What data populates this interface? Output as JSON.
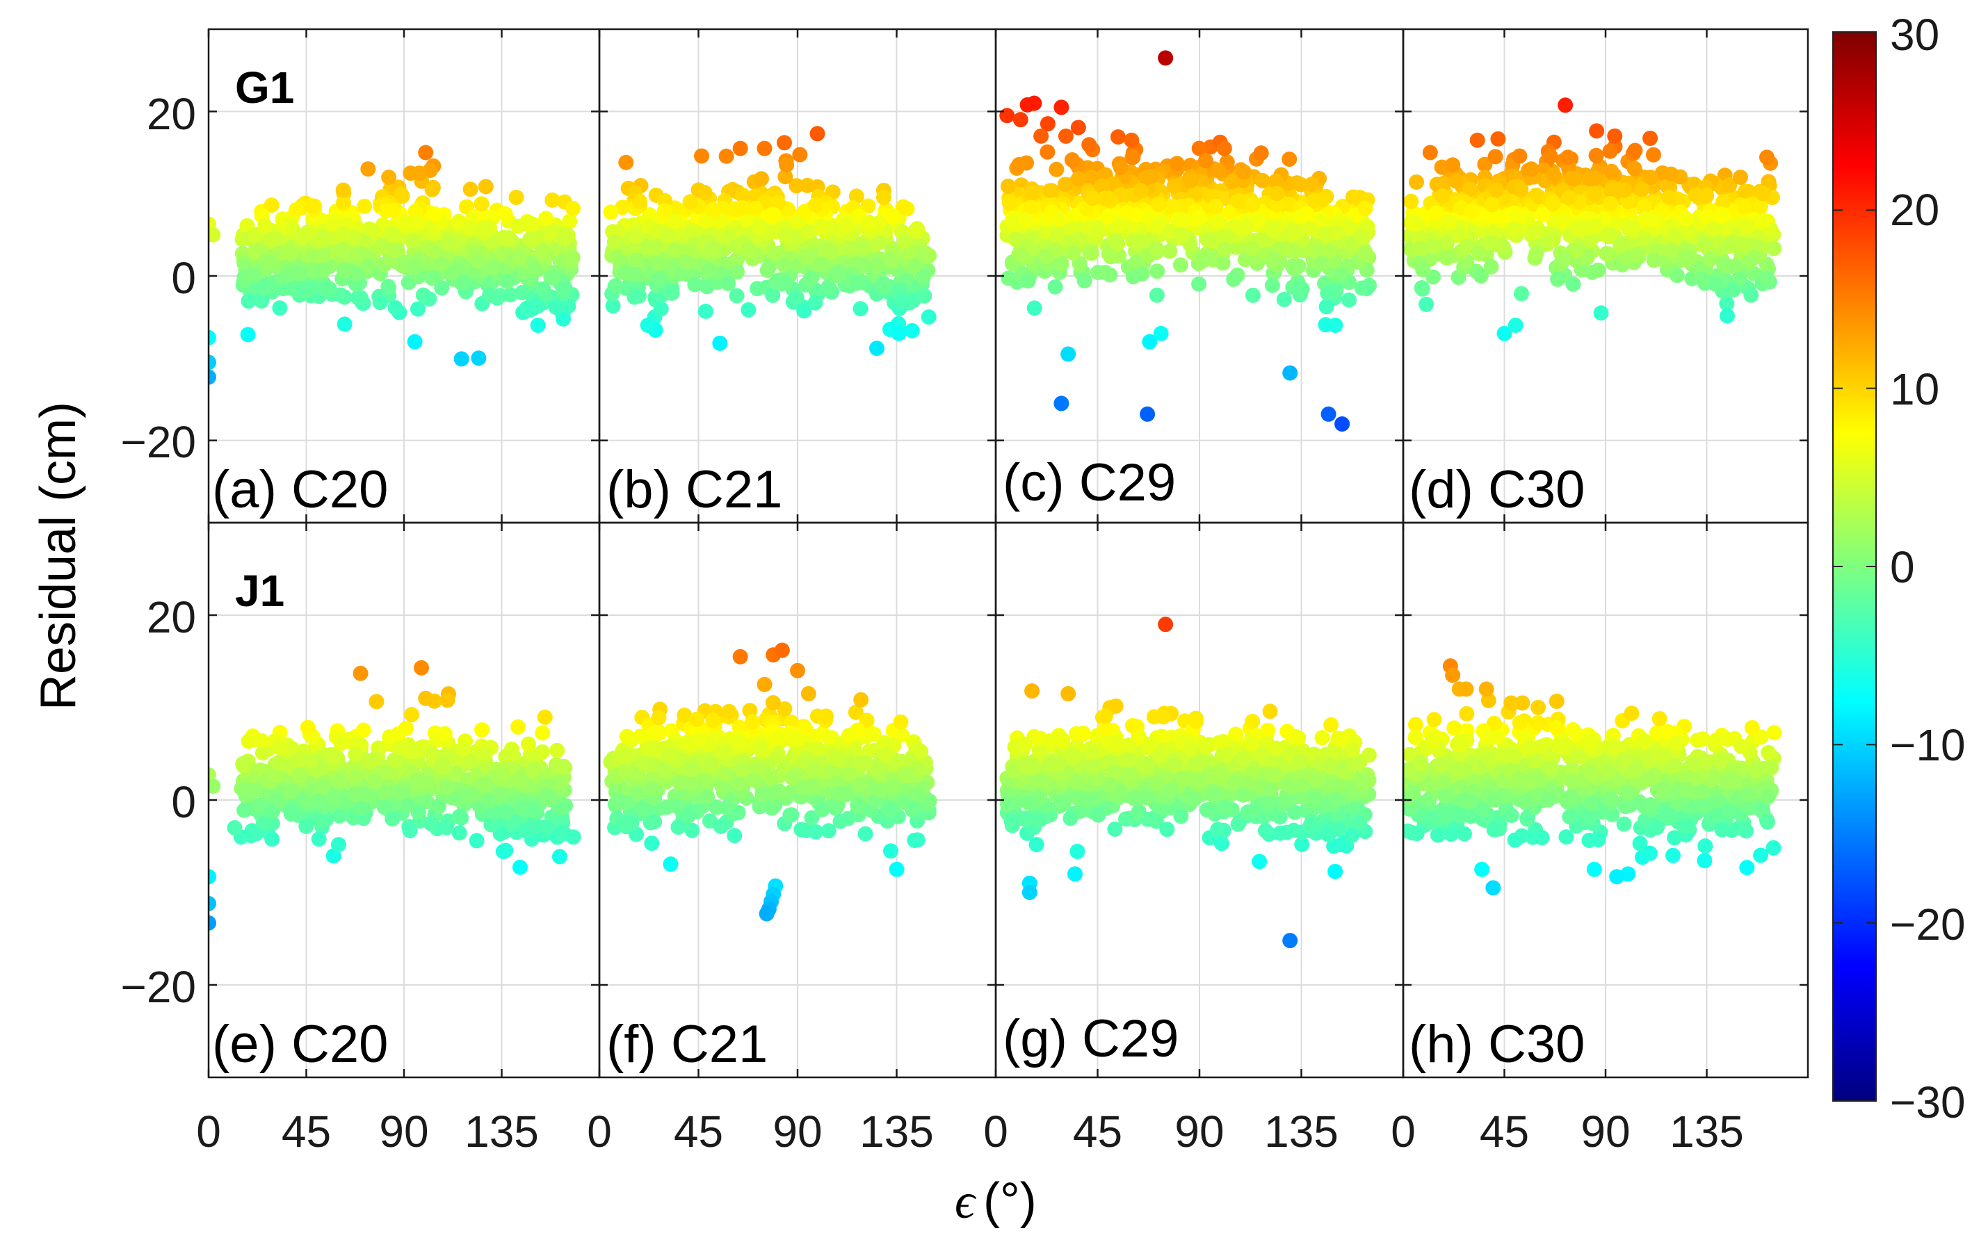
{
  "chart_data": {
    "type": "scatter",
    "colormap": "jet",
    "ylabel": "Residual (cm)",
    "xlabel_symbol": "ϵ",
    "xlabel_unit": "(°)",
    "xlim": [
      0,
      180
    ],
    "ylim": [
      -30,
      30
    ],
    "xticks": [
      0,
      45,
      90,
      135
    ],
    "xtick_labels": [
      "0",
      "45",
      "90",
      "135"
    ],
    "yticks": [
      20,
      0,
      -20
    ],
    "ytick_labels": [
      "20",
      "0",
      "−20"
    ],
    "colorbar": {
      "range": [
        -30,
        30
      ],
      "ticks": [
        30,
        20,
        10,
        0,
        -10,
        -20,
        -30
      ],
      "tick_labels": [
        "30",
        "20",
        "10",
        "0",
        "−10",
        "−20",
        "−30"
      ],
      "stops": [
        "#00007f",
        "#0000ff",
        "#007fff",
        "#00ffff",
        "#7fff7f",
        "#ffff00",
        "#ff7f00",
        "#ff0000",
        "#7f0000"
      ]
    },
    "rows": [
      {
        "label": "G1",
        "panels": [
          "(a) C20",
          "(b) C21",
          "(c) C29",
          "(d) C30"
        ]
      },
      {
        "label": "J1",
        "panels": [
          "(e) C20",
          "(f) C21",
          "(g) C29",
          "(h) C30"
        ]
      }
    ],
    "panels": [
      {
        "id": "a",
        "label": "(a) C20",
        "cloud": {
          "x": [
            15,
            168
          ],
          "center": 1.5,
          "amp": 4.5,
          "spread": 3.2,
          "n": 650
        },
        "points": [
          [
            0,
            -7.5
          ],
          [
            0,
            -10.5
          ],
          [
            0,
            -12.3
          ],
          [
            0,
            6.3
          ],
          [
            2,
            5
          ],
          [
            100,
            15
          ],
          [
            97,
            12.5
          ],
          [
            83,
            12
          ],
          [
            93,
            12.5
          ],
          [
            103,
            10.5
          ],
          [
            95,
            -8
          ]
        ]
      },
      {
        "id": "b",
        "label": "(b) C21",
        "cloud": {
          "x": [
            5,
            150
          ],
          "center": 2,
          "amp": 4.5,
          "spread": 3.3,
          "n": 650
        },
        "points": [
          [
            64,
            15.5
          ],
          [
            84,
            16.2
          ],
          [
            75,
            15.5
          ],
          [
            99,
            17.3
          ],
          [
            85,
            13.5
          ],
          [
            126,
            -8.8
          ],
          [
            132,
            -6.5
          ],
          [
            136,
            -7
          ],
          [
            22,
            -6
          ],
          [
            28,
            -4
          ]
        ]
      },
      {
        "id": "c",
        "label": "(c) C29",
        "cloud": {
          "x": [
            5,
            165
          ],
          "center": 5,
          "amp": 5.5,
          "spread": 3.4,
          "n": 800
        },
        "points": [
          [
            75,
            26.5
          ],
          [
            5,
            19.5
          ],
          [
            14,
            20.8
          ],
          [
            17,
            21
          ],
          [
            11,
            19
          ],
          [
            29,
            20.5
          ],
          [
            23,
            18.5
          ],
          [
            31,
            17
          ],
          [
            20,
            17
          ],
          [
            60,
            16.5
          ],
          [
            101,
            15.5
          ],
          [
            32,
            -9.5
          ],
          [
            29,
            -15.5
          ],
          [
            67,
            -16.8
          ],
          [
            130,
            -11.8
          ],
          [
            147,
            -16.8
          ],
          [
            153,
            -18
          ],
          [
            68,
            -8
          ],
          [
            73,
            -7
          ],
          [
            150,
            -6
          ]
        ]
      },
      {
        "id": "d",
        "label": "(d) C30",
        "cloud": {
          "x": [
            2,
            165
          ],
          "center": 5,
          "amp": 5,
          "spread": 3.4,
          "n": 800
        },
        "points": [
          [
            33,
            16.5
          ],
          [
            12,
            15
          ],
          [
            41,
            14.5
          ],
          [
            22,
            13.5
          ],
          [
            57,
            13
          ],
          [
            110,
            12
          ],
          [
            150,
            12
          ],
          [
            160,
            10
          ],
          [
            45,
            -7
          ],
          [
            50,
            -6
          ],
          [
            88,
            -4.5
          ]
        ]
      },
      {
        "id": "e",
        "label": "(e) C20",
        "cloud": {
          "x": [
            15,
            165
          ],
          "center": 0.5,
          "amp": 3.5,
          "spread": 2.6,
          "n": 650
        },
        "points": [
          [
            0,
            -8.3
          ],
          [
            0,
            -11.2
          ],
          [
            0,
            -13.3
          ],
          [
            0,
            2.7
          ],
          [
            2,
            1.5
          ],
          [
            70,
            13.7
          ],
          [
            98,
            14.3
          ],
          [
            104,
            10.7
          ],
          [
            110,
            10.8
          ],
          [
            100,
            11
          ],
          [
            163,
            -3.5
          ],
          [
            168,
            -4
          ],
          [
            15,
            -4
          ],
          [
            12,
            -3
          ]
        ]
      },
      {
        "id": "f",
        "label": "(f) C21",
        "cloud": {
          "x": [
            5,
            150
          ],
          "center": 1.5,
          "amp": 4,
          "spread": 2.9,
          "n": 650
        },
        "points": [
          [
            64,
            15.5
          ],
          [
            79,
            15.7
          ],
          [
            83,
            16.2
          ],
          [
            90,
            14
          ],
          [
            75,
            12.5
          ],
          [
            95,
            11.5
          ],
          [
            80,
            -9.3
          ],
          [
            79,
            -10.2
          ],
          [
            78,
            -11
          ],
          [
            77,
            -11.8
          ],
          [
            76,
            -12.3
          ],
          [
            8,
            -2
          ],
          [
            12,
            -2.5
          ]
        ]
      },
      {
        "id": "g",
        "label": "(g) C29",
        "cloud": {
          "x": [
            5,
            165
          ],
          "center": 1,
          "amp": 3.5,
          "spread": 2.7,
          "n": 800
        },
        "points": [
          [
            75,
            19
          ],
          [
            16,
            11.8
          ],
          [
            32,
            11.5
          ],
          [
            70,
            9
          ],
          [
            74,
            9
          ],
          [
            15,
            -9
          ],
          [
            15,
            -10
          ],
          [
            35,
            -8
          ],
          [
            130,
            -15.2
          ]
        ]
      },
      {
        "id": "h",
        "label": "(h) C30",
        "cloud": {
          "x": [
            2,
            165
          ],
          "center": 1,
          "amp": 3.5,
          "spread": 2.8,
          "n": 800
        },
        "points": [
          [
            21,
            14.5
          ],
          [
            22,
            13.5
          ],
          [
            28,
            12
          ],
          [
            25,
            12
          ],
          [
            37,
            12
          ],
          [
            48,
            10.5
          ],
          [
            53,
            10.5
          ],
          [
            40,
            -9.5
          ],
          [
            35,
            -7.5
          ],
          [
            85,
            -7.5
          ],
          [
            100,
            -8
          ],
          [
            95,
            -8.3
          ],
          [
            120,
            -6
          ]
        ]
      }
    ]
  }
}
